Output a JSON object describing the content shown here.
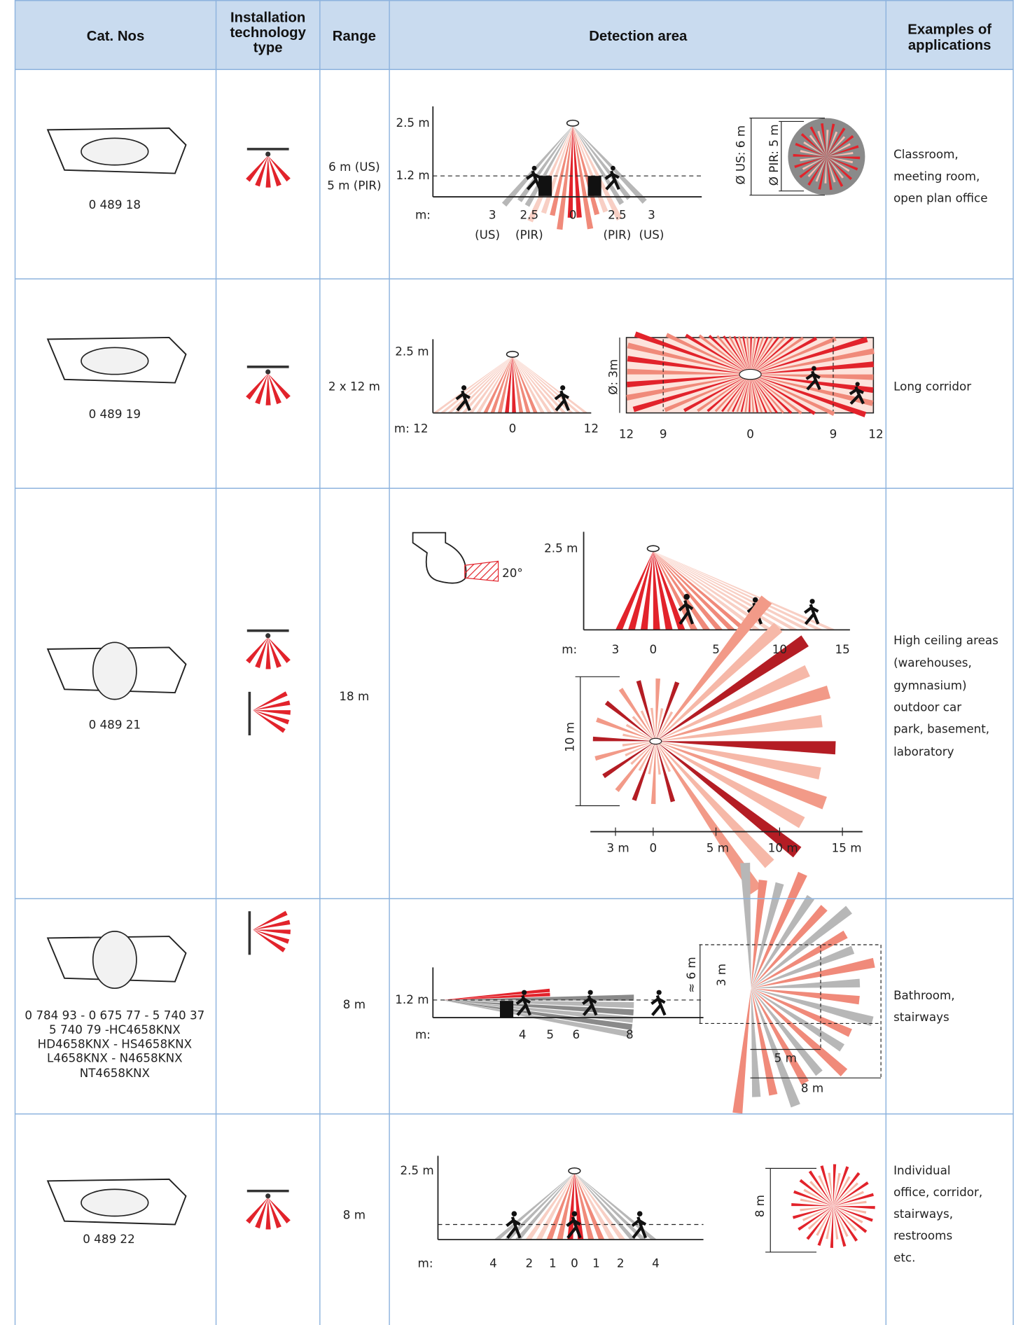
{
  "header": {
    "cat_nos": "Cat. Nos",
    "technology": [
      "Installation",
      "technology",
      "type"
    ],
    "range": "Range",
    "detection_area": "Detection area",
    "applications": [
      "Examples of",
      "applications"
    ]
  },
  "rows": [
    {
      "cat_nos": [
        "0 489 18"
      ],
      "range": [
        "6 m (US)",
        "5 m (PIR)"
      ],
      "detection_labels": [
        "2.5 m",
        "1.2 m",
        "m:",
        "3",
        "2.5",
        "0",
        "2.5",
        "3",
        "(US)",
        "(PIR)",
        "(PIR)",
        "(US)",
        "Ø US: 6 m",
        "Ø PIR: 5 m"
      ],
      "applications": [
        "Classroom,",
        "meeting room,",
        "open plan office"
      ]
    },
    {
      "cat_nos": [
        "0 489 19"
      ],
      "range": [
        "2 x 12 m"
      ],
      "detection_labels": [
        "2.5 m",
        "m: 12",
        "0",
        "12",
        "Ø: 3m",
        "12",
        "9",
        "0",
        "9",
        "12"
      ],
      "applications": [
        "Long corridor"
      ]
    },
    {
      "cat_nos": [
        "0 489 21"
      ],
      "range": [
        "18 m"
      ],
      "detection_labels": [
        "20°",
        "2.5 m",
        "m:",
        "3",
        "0",
        "5",
        "10",
        "15",
        "10 m",
        "3 m",
        "0",
        "5 m",
        "10 m",
        "15 m"
      ],
      "applications": [
        "High ceiling areas",
        "(warehouses,",
        "gymnasium)",
        "outdoor car",
        "park, basement,",
        "laboratory"
      ]
    },
    {
      "cat_nos": [
        "0 784 93 - 0 675 77 - 5 740 37",
        "5 740 79 -HC4658KNX",
        "HD4658KNX - HS4658KNX",
        "L4658KNX - N4658KNX",
        "NT4658KNX"
      ],
      "range": [
        "8 m"
      ],
      "detection_labels": [
        "1.2 m",
        "m:",
        "4",
        "5",
        "6",
        "8",
        "≈ 6 m",
        "3 m",
        "5 m",
        "8 m"
      ],
      "applications": [
        "Bathroom,",
        "stairways"
      ]
    },
    {
      "cat_nos": [
        "0 489 22"
      ],
      "range": [
        "8 m"
      ],
      "detection_labels": [
        "2.5 m",
        "m:",
        "4",
        "2",
        "1",
        "0",
        "1",
        "2",
        "4",
        "8 m"
      ],
      "applications": [
        "Individual",
        "office, corridor,",
        "stairways,",
        "restrooms",
        "etc."
      ]
    }
  ]
}
